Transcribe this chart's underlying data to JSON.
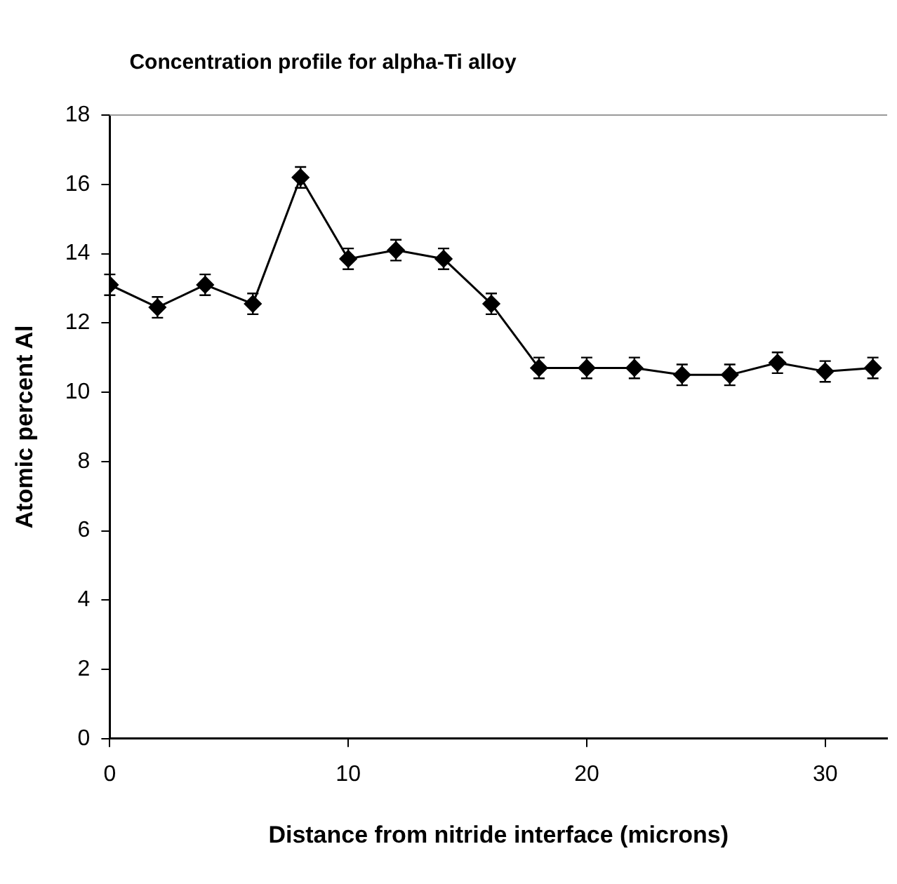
{
  "chart_data": {
    "type": "line",
    "title": "Concentration profile for alpha-Ti alloy",
    "xlabel": "Distance from nitride interface (microns)",
    "ylabel": "Atomic percent Al",
    "x": [
      0,
      2,
      4,
      6,
      8,
      10,
      12,
      14,
      16,
      18,
      20,
      22,
      24,
      26,
      28,
      30,
      32
    ],
    "series": [
      {
        "color": "#000000",
        "values": [
          13.1,
          12.45,
          13.1,
          12.55,
          16.2,
          13.85,
          14.1,
          13.85,
          12.55,
          10.7,
          10.7,
          10.7,
          10.5,
          10.5,
          10.85,
          10.6,
          10.7
        ],
        "errors": [
          0.3,
          0.3,
          0.3,
          0.3,
          0.3,
          0.3,
          0.3,
          0.3,
          0.3,
          0.3,
          0.3,
          0.3,
          0.3,
          0.3,
          0.3,
          0.3,
          0.3
        ]
      }
    ],
    "xlim": [
      0,
      32.6
    ],
    "xticks": [
      0,
      10,
      20,
      30
    ],
    "ylim": [
      0,
      18
    ],
    "yticks": [
      0,
      2,
      4,
      6,
      8,
      10,
      12,
      14,
      16,
      18
    ],
    "grid": false,
    "legend": false,
    "marker": "diamond",
    "line_style": "solid"
  }
}
